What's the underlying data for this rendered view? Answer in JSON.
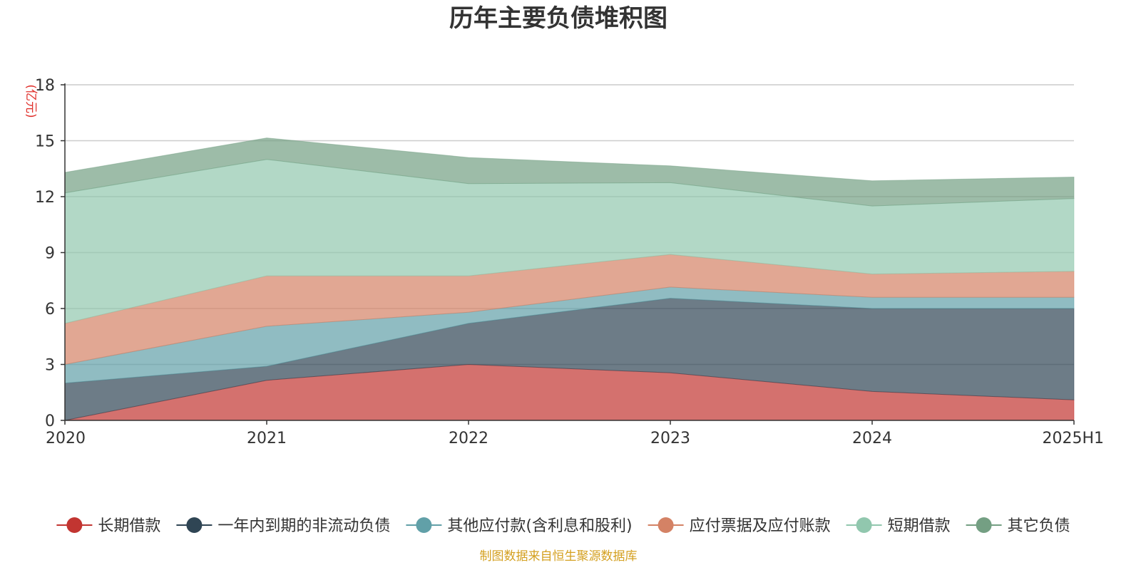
{
  "chart_data": {
    "type": "area",
    "stacked": true,
    "title": "历年主要负债堆积图",
    "unit_label": "(亿元)",
    "source_note": "制图数据来自恒生聚源数据库",
    "categories": [
      "2020",
      "2021",
      "2022",
      "2023",
      "2024",
      "2025H1"
    ],
    "ylim": [
      0,
      18
    ],
    "yticks": [
      "0",
      "3",
      "6",
      "9",
      "12",
      "15",
      "18"
    ],
    "grid": true,
    "legend_position": "bottom",
    "series": [
      {
        "name": "长期借款",
        "color": "#c23531",
        "values": [
          0.0,
          2.15,
          3.0,
          2.55,
          1.55,
          1.1
        ]
      },
      {
        "name": "一年内到期的非流动负债",
        "color": "#2f4554",
        "values": [
          2.0,
          0.75,
          2.2,
          4.0,
          4.45,
          4.9
        ]
      },
      {
        "name": "其他应付款(含利息和股利)",
        "color": "#61a0a8",
        "values": [
          1.0,
          2.15,
          0.6,
          0.6,
          0.6,
          0.6
        ]
      },
      {
        "name": "应付票据及应付账款",
        "color": "#d48265",
        "values": [
          2.2,
          2.7,
          1.95,
          1.75,
          1.25,
          1.4
        ]
      },
      {
        "name": "短期借款",
        "color": "#91c7ae",
        "values": [
          7.0,
          6.25,
          4.95,
          3.85,
          3.65,
          3.9
        ]
      },
      {
        "name": "其它负债",
        "color": "#749f83",
        "values": [
          1.1,
          1.15,
          1.4,
          0.9,
          1.35,
          1.15
        ]
      }
    ]
  }
}
